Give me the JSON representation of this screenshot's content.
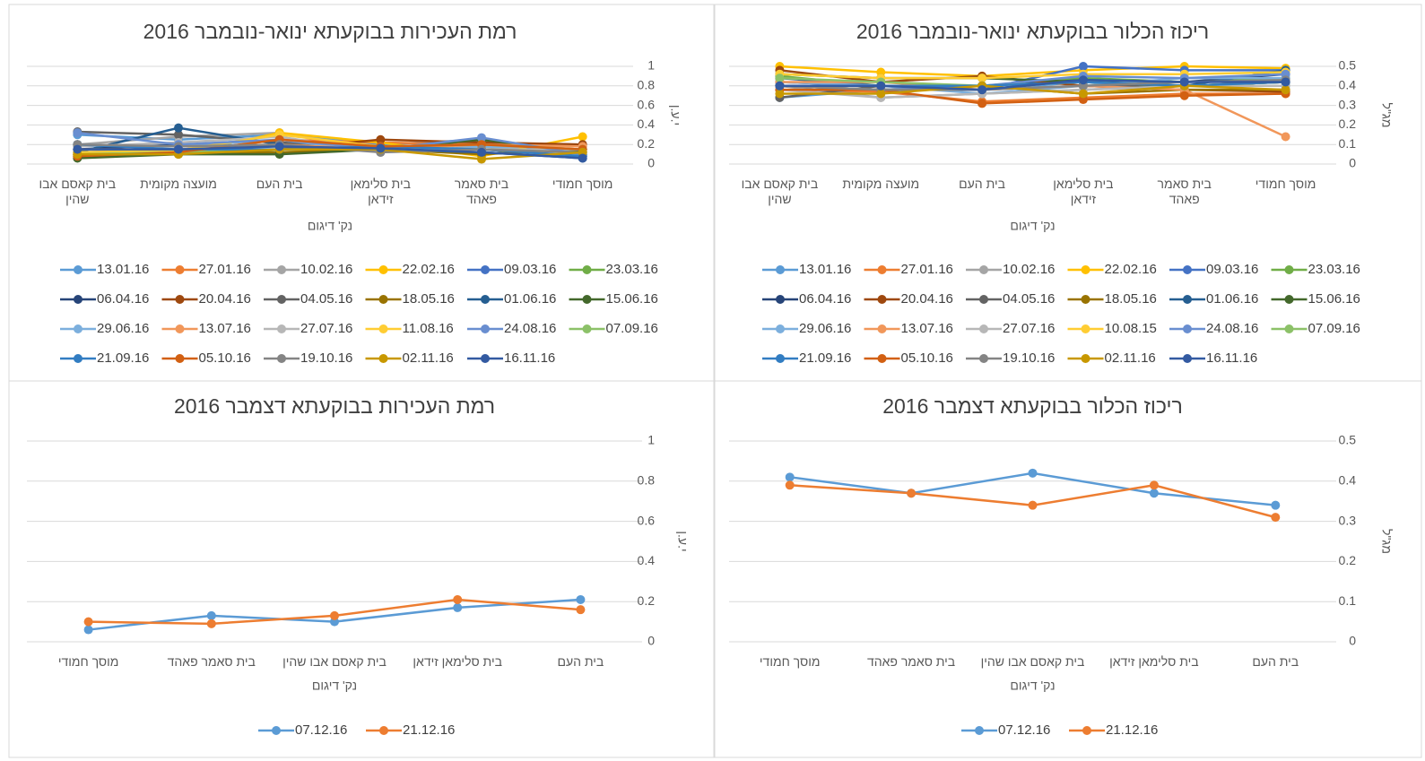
{
  "chart_data": [
    {
      "type": "line",
      "title": "רמת העכירות בבוקעתא ינואר-נובמבר 2016",
      "xlabel": "נק' דיגום",
      "ylabel": "י.ע.ן",
      "categories": [
        "בית קאסם אבו שהין",
        "מועצה מקומית",
        "בית העם",
        "בית סלימאן זידאן",
        "בית סאמר פאהד",
        "מוסך חמודי"
      ],
      "ylim": [
        0,
        1
      ],
      "yticks": [
        0,
        0.2,
        0.4,
        0.6,
        0.8,
        1
      ],
      "grid": true,
      "series": [
        {
          "name": "13.01.16",
          "color": "#5b9bd5",
          "values": [
            0.3,
            0.25,
            0.3,
            0.2,
            0.25,
            0.1
          ]
        },
        {
          "name": "27.01.16",
          "color": "#ed7d31",
          "values": [
            0.12,
            0.12,
            0.25,
            0.22,
            0.2,
            0.15
          ]
        },
        {
          "name": "10.02.16",
          "color": "#a5a5a5",
          "values": [
            0.2,
            0.28,
            0.32,
            0.15,
            0.2,
            0.12
          ]
        },
        {
          "name": "22.02.16",
          "color": "#ffc000",
          "values": [
            0.1,
            0.1,
            0.32,
            0.22,
            0.08,
            0.28
          ]
        },
        {
          "name": "09.03.16",
          "color": "#4472c4",
          "values": [
            0.12,
            0.15,
            0.2,
            0.15,
            0.25,
            0.08
          ]
        },
        {
          "name": "23.03.16",
          "color": "#70ad47",
          "values": [
            0.08,
            0.12,
            0.12,
            0.15,
            0.25,
            0.12
          ]
        },
        {
          "name": "06.04.16",
          "color": "#264478",
          "values": [
            0.15,
            0.2,
            0.18,
            0.15,
            0.15,
            0.08
          ]
        },
        {
          "name": "20.04.16",
          "color": "#9e480e",
          "values": [
            0.1,
            0.12,
            0.15,
            0.25,
            0.22,
            0.2
          ]
        },
        {
          "name": "04.05.16",
          "color": "#636363",
          "values": [
            0.33,
            0.3,
            0.22,
            0.18,
            0.15,
            0.1
          ]
        },
        {
          "name": "18.05.16",
          "color": "#997300",
          "values": [
            0.1,
            0.12,
            0.12,
            0.15,
            0.1,
            0.15
          ]
        },
        {
          "name": "01.06.16",
          "color": "#255e91",
          "values": [
            0.12,
            0.37,
            0.2,
            0.15,
            0.12,
            0.06
          ]
        },
        {
          "name": "15.06.16",
          "color": "#43682b",
          "values": [
            0.06,
            0.1,
            0.1,
            0.15,
            0.25,
            0.12
          ]
        },
        {
          "name": "29.06.16",
          "color": "#7cafdd",
          "values": [
            0.2,
            0.18,
            0.25,
            0.12,
            0.18,
            0.1
          ]
        },
        {
          "name": "13.07.16",
          "color": "#f1975a",
          "values": [
            0.15,
            0.15,
            0.2,
            0.15,
            0.2,
            0.18
          ]
        },
        {
          "name": "27.07.16",
          "color": "#b7b7b7",
          "values": [
            0.18,
            0.22,
            0.28,
            0.12,
            0.15,
            0.15
          ]
        },
        {
          "name": "11.08.16",
          "color": "#ffcd33",
          "values": [
            0.12,
            0.14,
            0.3,
            0.18,
            0.15,
            0.12
          ]
        },
        {
          "name": "24.08.16",
          "color": "#698ed0",
          "values": [
            0.32,
            0.2,
            0.25,
            0.15,
            0.27,
            0.1
          ]
        },
        {
          "name": "07.09.16",
          "color": "#8cc168",
          "values": [
            0.1,
            0.12,
            0.15,
            0.18,
            0.2,
            0.15
          ]
        },
        {
          "name": "21.09.16",
          "color": "#327dc2",
          "values": [
            0.2,
            0.15,
            0.15,
            0.18,
            0.15,
            0.08
          ]
        },
        {
          "name": "05.10.16",
          "color": "#d26012",
          "values": [
            0.08,
            0.12,
            0.25,
            0.18,
            0.2,
            0.15
          ]
        },
        {
          "name": "19.10.16",
          "color": "#848484",
          "values": [
            0.2,
            0.18,
            0.2,
            0.12,
            0.15,
            0.12
          ]
        },
        {
          "name": "02.11.16",
          "color": "#c89800",
          "values": [
            0.1,
            0.1,
            0.15,
            0.15,
            0.05,
            0.12
          ]
        },
        {
          "name": "16.11.16",
          "color": "#335aa1",
          "values": [
            0.15,
            0.15,
            0.18,
            0.16,
            0.12,
            0.06
          ]
        }
      ]
    },
    {
      "type": "line",
      "title": "ריכוז הכלור בבוקעתא ינואר-נובמבר 2016",
      "xlabel": "נק' דיגום",
      "ylabel": "מג\"ל",
      "categories": [
        "בית קאסם אבו שהין",
        "מועצה מקומית",
        "בית העם",
        "בית סלימאן זידאן",
        "בית סאמר פאהד",
        "מוסך חמודי"
      ],
      "ylim": [
        0,
        0.5
      ],
      "yticks": [
        0,
        0.1,
        0.2,
        0.3,
        0.4,
        0.5
      ],
      "grid": true,
      "series": [
        {
          "name": "13.01.16",
          "color": "#5b9bd5",
          "values": [
            0.34,
            0.38,
            0.38,
            0.42,
            0.4,
            0.4
          ]
        },
        {
          "name": "27.01.16",
          "color": "#ed7d31",
          "values": [
            0.38,
            0.37,
            0.32,
            0.34,
            0.36,
            0.36
          ]
        },
        {
          "name": "10.02.16",
          "color": "#a5a5a5",
          "values": [
            0.4,
            0.34,
            0.36,
            0.38,
            0.4,
            0.42
          ]
        },
        {
          "name": "22.02.16",
          "color": "#ffc000",
          "values": [
            0.5,
            0.47,
            0.45,
            0.48,
            0.5,
            0.49
          ]
        },
        {
          "name": "09.03.16",
          "color": "#4472c4",
          "values": [
            0.4,
            0.38,
            0.38,
            0.5,
            0.48,
            0.48
          ]
        },
        {
          "name": "23.03.16",
          "color": "#70ad47",
          "values": [
            0.45,
            0.4,
            0.4,
            0.44,
            0.42,
            0.44
          ]
        },
        {
          "name": "06.04.16",
          "color": "#264478",
          "values": [
            0.42,
            0.4,
            0.4,
            0.43,
            0.42,
            0.46
          ]
        },
        {
          "name": "20.04.16",
          "color": "#9e480e",
          "values": [
            0.48,
            0.42,
            0.45,
            0.4,
            0.38,
            0.37
          ]
        },
        {
          "name": "04.05.16",
          "color": "#636363",
          "values": [
            0.34,
            0.4,
            0.38,
            0.4,
            0.4,
            0.42
          ]
        },
        {
          "name": "18.05.16",
          "color": "#997300",
          "values": [
            0.4,
            0.38,
            0.4,
            0.36,
            0.38,
            0.38
          ]
        },
        {
          "name": "01.06.16",
          "color": "#255e91",
          "values": [
            0.44,
            0.4,
            0.38,
            0.43,
            0.4,
            0.48
          ]
        },
        {
          "name": "15.06.16",
          "color": "#43682b",
          "values": [
            0.46,
            0.44,
            0.44,
            0.42,
            0.4,
            0.42
          ]
        },
        {
          "name": "29.06.16",
          "color": "#7cafdd",
          "values": [
            0.42,
            0.4,
            0.36,
            0.4,
            0.44,
            0.44
          ]
        },
        {
          "name": "13.07.16",
          "color": "#f1975a",
          "values": [
            0.42,
            0.42,
            0.38,
            0.4,
            0.38,
            0.14
          ]
        },
        {
          "name": "27.07.16",
          "color": "#b7b7b7",
          "values": [
            0.38,
            0.34,
            0.36,
            0.38,
            0.4,
            0.4
          ]
        },
        {
          "name": "10.08.15",
          "color": "#ffcd33",
          "values": [
            0.46,
            0.44,
            0.44,
            0.46,
            0.46,
            0.47
          ]
        },
        {
          "name": "24.08.16",
          "color": "#698ed0",
          "values": [
            0.4,
            0.38,
            0.4,
            0.45,
            0.44,
            0.46
          ]
        },
        {
          "name": "07.09.16",
          "color": "#8cc168",
          "values": [
            0.44,
            0.42,
            0.4,
            0.42,
            0.4,
            0.42
          ]
        },
        {
          "name": "21.09.16",
          "color": "#327dc2",
          "values": [
            0.4,
            0.4,
            0.4,
            0.42,
            0.4,
            0.42
          ]
        },
        {
          "name": "05.10.16",
          "color": "#d26012",
          "values": [
            0.38,
            0.38,
            0.31,
            0.33,
            0.35,
            0.36
          ]
        },
        {
          "name": "19.10.16",
          "color": "#848484",
          "values": [
            0.4,
            0.38,
            0.38,
            0.4,
            0.42,
            0.43
          ]
        },
        {
          "name": "02.11.16",
          "color": "#c89800",
          "values": [
            0.36,
            0.36,
            0.4,
            0.36,
            0.4,
            0.38
          ]
        },
        {
          "name": "16.11.16",
          "color": "#335aa1",
          "values": [
            0.4,
            0.4,
            0.38,
            0.43,
            0.42,
            0.42
          ]
        }
      ]
    },
    {
      "type": "line",
      "title": "רמת העכירות בבוקעתא דצמבר 2016",
      "xlabel": "נק' דיגום",
      "ylabel": "י.ע.ן",
      "categories": [
        "מוסך חמודי",
        "בית סאמר פאהד",
        "בית קאסם אבו שהין",
        "בית סלימאן זידאן",
        "בית העם"
      ],
      "ylim": [
        0,
        1
      ],
      "yticks": [
        0,
        0.2,
        0.4,
        0.6,
        0.8,
        1
      ],
      "grid": true,
      "series": [
        {
          "name": "07.12.16",
          "color": "#5b9bd5",
          "values": [
            0.06,
            0.13,
            0.1,
            0.17,
            0.21
          ]
        },
        {
          "name": "21.12.16",
          "color": "#ed7d31",
          "values": [
            0.1,
            0.09,
            0.13,
            0.21,
            0.16
          ]
        }
      ]
    },
    {
      "type": "line",
      "title": "ריכוז הכלור בבוקעתא דצמבר 2016",
      "xlabel": "נק' דיגום",
      "ylabel": "מג\"ל",
      "categories": [
        "מוסך חמודי",
        "בית סאמר פאהד",
        "בית קאסם אבו שהין",
        "בית סלימאן זידאן",
        "בית העם"
      ],
      "ylim": [
        0,
        0.5
      ],
      "yticks": [
        0,
        0.1,
        0.2,
        0.3,
        0.4,
        0.5
      ],
      "grid": true,
      "series": [
        {
          "name": "07.12.16",
          "color": "#5b9bd5",
          "values": [
            0.41,
            0.37,
            0.42,
            0.37,
            0.34
          ]
        },
        {
          "name": "21.12.16",
          "color": "#ed7d31",
          "values": [
            0.39,
            0.37,
            0.34,
            0.39,
            0.31
          ]
        }
      ]
    }
  ]
}
